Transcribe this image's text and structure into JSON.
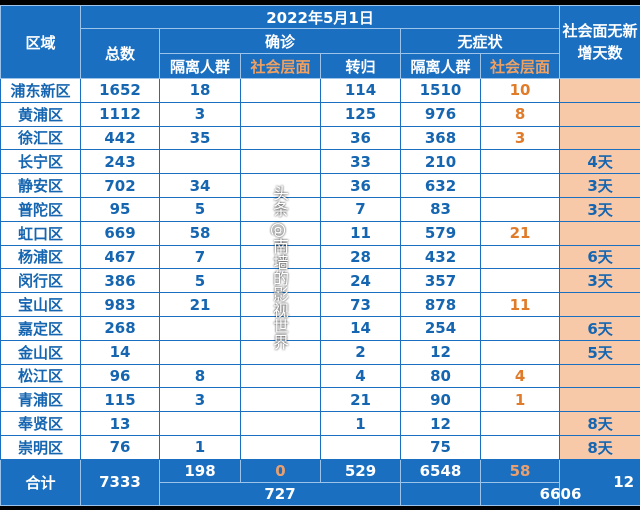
{
  "header": {
    "region": "区域",
    "date": "2022年5月1日",
    "total": "总数",
    "confirmed": "确诊",
    "asymptomatic": "无症状",
    "quarantine": "隔离人群",
    "community": "社会层面",
    "converted": "转归",
    "days_label": "社会面无新增天数"
  },
  "rows": [
    [
      "浦东新区",
      "1652",
      "18",
      "",
      "114",
      "1510",
      "10",
      ""
    ],
    [
      "黄浦区",
      "1112",
      "3",
      "",
      "125",
      "976",
      "8",
      ""
    ],
    [
      "徐汇区",
      "442",
      "35",
      "",
      "36",
      "368",
      "3",
      ""
    ],
    [
      "长宁区",
      "243",
      "",
      "",
      "33",
      "210",
      "",
      "4天"
    ],
    [
      "静安区",
      "702",
      "34",
      "",
      "36",
      "632",
      "",
      "3天"
    ],
    [
      "普陀区",
      "95",
      "5",
      "",
      "7",
      "83",
      "",
      "3天"
    ],
    [
      "虹口区",
      "669",
      "58",
      "",
      "11",
      "579",
      "21",
      ""
    ],
    [
      "杨浦区",
      "467",
      "7",
      "",
      "28",
      "432",
      "",
      "6天"
    ],
    [
      "闵行区",
      "386",
      "5",
      "",
      "24",
      "357",
      "",
      "3天"
    ],
    [
      "宝山区",
      "983",
      "21",
      "",
      "73",
      "878",
      "11",
      ""
    ],
    [
      "嘉定区",
      "268",
      "",
      "",
      "14",
      "254",
      "",
      "6天"
    ],
    [
      "金山区",
      "14",
      "",
      "",
      "2",
      "12",
      "",
      "5天"
    ],
    [
      "松江区",
      "96",
      "8",
      "",
      "4",
      "80",
      "4",
      ""
    ],
    [
      "青浦区",
      "115",
      "3",
      "",
      "21",
      "90",
      "1",
      ""
    ],
    [
      "奉贤区",
      "13",
      "",
      "",
      "1",
      "12",
      "",
      "8天"
    ],
    [
      "崇明区",
      "76",
      "1",
      "",
      "",
      "75",
      "",
      "8天"
    ]
  ],
  "footer": {
    "label": "合计",
    "total": "7333",
    "confirmed_quarantine": "198",
    "confirmed_community": "0",
    "converted": "529",
    "asym_quarantine": "6548",
    "asym_community": "58",
    "confirmed_sum": "727",
    "asym_sum": "6606",
    "last": "12"
  },
  "watermark": "头条 @南墙的影视世界",
  "colors": {
    "header_blue": "#1a6fc0",
    "text_blue": "#1565b0",
    "orange": "#e07b2a",
    "peach": "#f8c9a8"
  }
}
